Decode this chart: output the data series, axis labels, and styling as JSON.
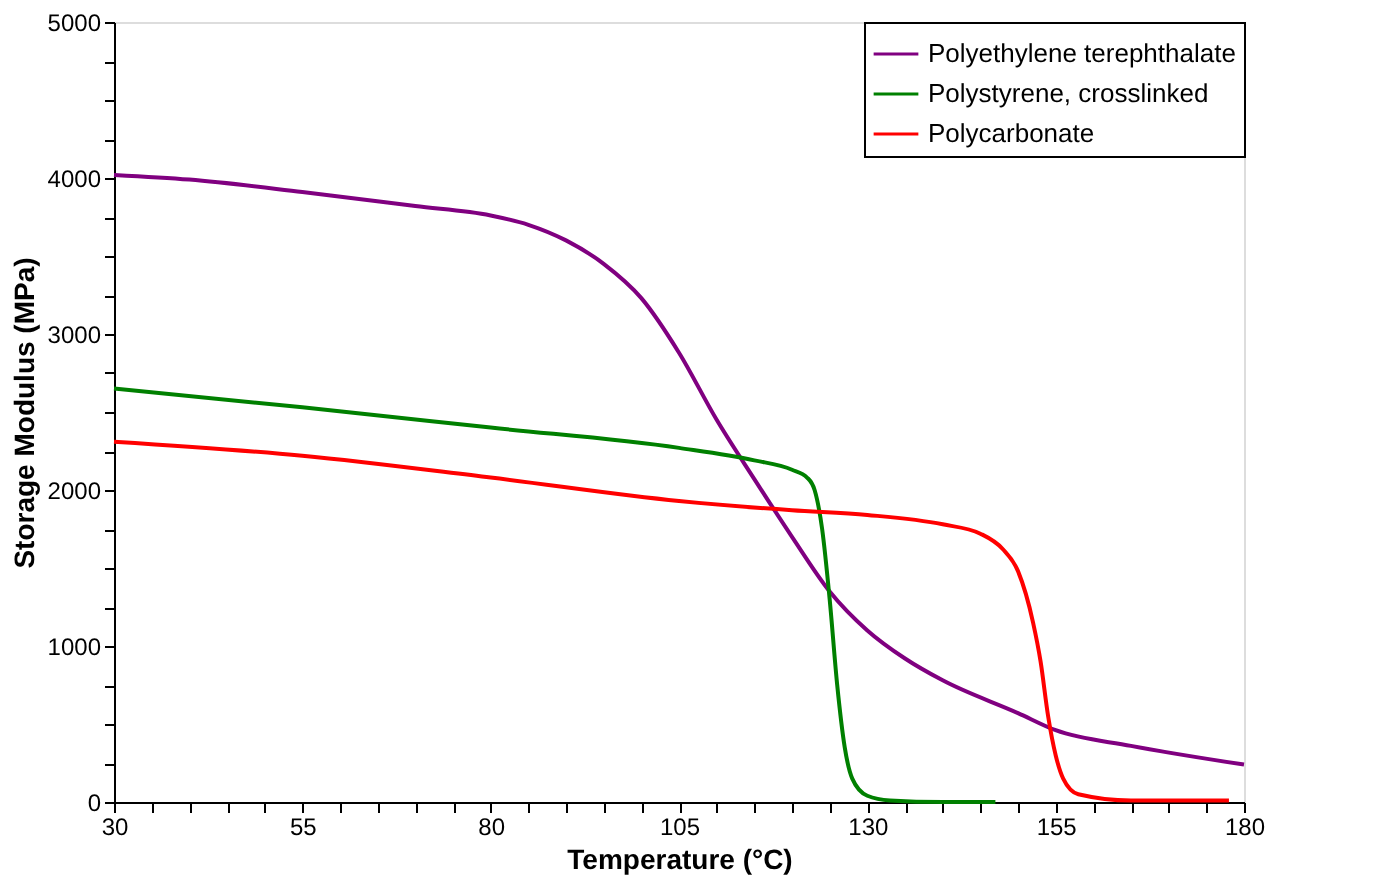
{
  "chart_data": {
    "type": "line",
    "xlabel": "Temperature (°C)",
    "ylabel": "Storage Modulus (MPa)",
    "xlim": [
      30,
      180
    ],
    "ylim": [
      0,
      5000
    ],
    "xticks": [
      30,
      {
        "value": 35,
        "label": null
      },
      {
        "value": 40,
        "label": null
      },
      {
        "value": 45,
        "label": null
      },
      {
        "value": 50,
        "label": null
      },
      55,
      {
        "value": 60,
        "label": null
      },
      {
        "value": 65,
        "label": null
      },
      {
        "value": 70,
        "label": null
      },
      {
        "value": 75,
        "label": null
      },
      80,
      {
        "value": 85,
        "label": null
      },
      {
        "value": 90,
        "label": null
      },
      {
        "value": 95,
        "label": null
      },
      {
        "value": 100,
        "label": null
      },
      105,
      {
        "value": 110,
        "label": null
      },
      {
        "value": 115,
        "label": null
      },
      {
        "value": 120,
        "label": null
      },
      {
        "value": 125,
        "label": null
      },
      130,
      {
        "value": 135,
        "label": null
      },
      {
        "value": 140,
        "label": null
      },
      {
        "value": 145,
        "label": null
      },
      {
        "value": 150,
        "label": null
      },
      155,
      {
        "value": 160,
        "label": null
      },
      {
        "value": 165,
        "label": null
      },
      {
        "value": 170,
        "label": null
      },
      {
        "value": 175,
        "label": null
      },
      180
    ],
    "yticks": [
      0,
      {
        "value": 250,
        "label": null
      },
      {
        "value": 500,
        "label": null
      },
      {
        "value": 750,
        "label": null
      },
      1000,
      {
        "value": 1250,
        "label": null
      },
      {
        "value": 1500,
        "label": null
      },
      {
        "value": 1750,
        "label": null
      },
      2000,
      {
        "value": 2250,
        "label": null
      },
      {
        "value": 2500,
        "label": null
      },
      {
        "value": 2750,
        "label": null
      },
      3000,
      {
        "value": 3250,
        "label": null
      },
      {
        "value": 3500,
        "label": null
      },
      {
        "value": 3750,
        "label": null
      },
      4000,
      {
        "value": 4250,
        "label": null
      },
      {
        "value": 4500,
        "label": null
      },
      {
        "value": 4750,
        "label": null
      },
      5000
    ],
    "grid": false,
    "legend": "top right",
    "line_style": "solid",
    "marker": "none",
    "series": [
      {
        "name": "Polyethylene terephthalate",
        "color": "#800080",
        "x": [
          30,
          40,
          55,
          70,
          80,
          85,
          90,
          95,
          100,
          105,
          110,
          115,
          120,
          125,
          130,
          135,
          140,
          150,
          155,
          165,
          180
        ],
        "values": [
          4020,
          3990,
          3910,
          3820,
          3760,
          3700,
          3600,
          3450,
          3230,
          2880,
          2450,
          2070,
          1700,
          1350,
          1100,
          920,
          780,
          570,
          460,
          360,
          240
        ]
      },
      {
        "name": "Polystyrene, crosslinked",
        "color": "#008000",
        "x": [
          30,
          55,
          80,
          105,
          115,
          120,
          122,
          123,
          124,
          125,
          126,
          127,
          128,
          130,
          133,
          140,
          147
        ],
        "values": [
          2650,
          2530,
          2400,
          2270,
          2190,
          2130,
          2080,
          2000,
          1750,
          1300,
          750,
          350,
          150,
          40,
          10,
          0,
          0
        ]
      },
      {
        "name": "Polycarbonate",
        "color": "#ff0000",
        "x": [
          30,
          55,
          80,
          105,
          120,
          130,
          140,
          145,
          148,
          150,
          152,
          153,
          154,
          155,
          156,
          158,
          165,
          178
        ],
        "values": [
          2310,
          2220,
          2080,
          1930,
          1870,
          1840,
          1780,
          1720,
          1620,
          1480,
          1150,
          900,
          550,
          300,
          150,
          50,
          10,
          10
        ]
      }
    ]
  }
}
